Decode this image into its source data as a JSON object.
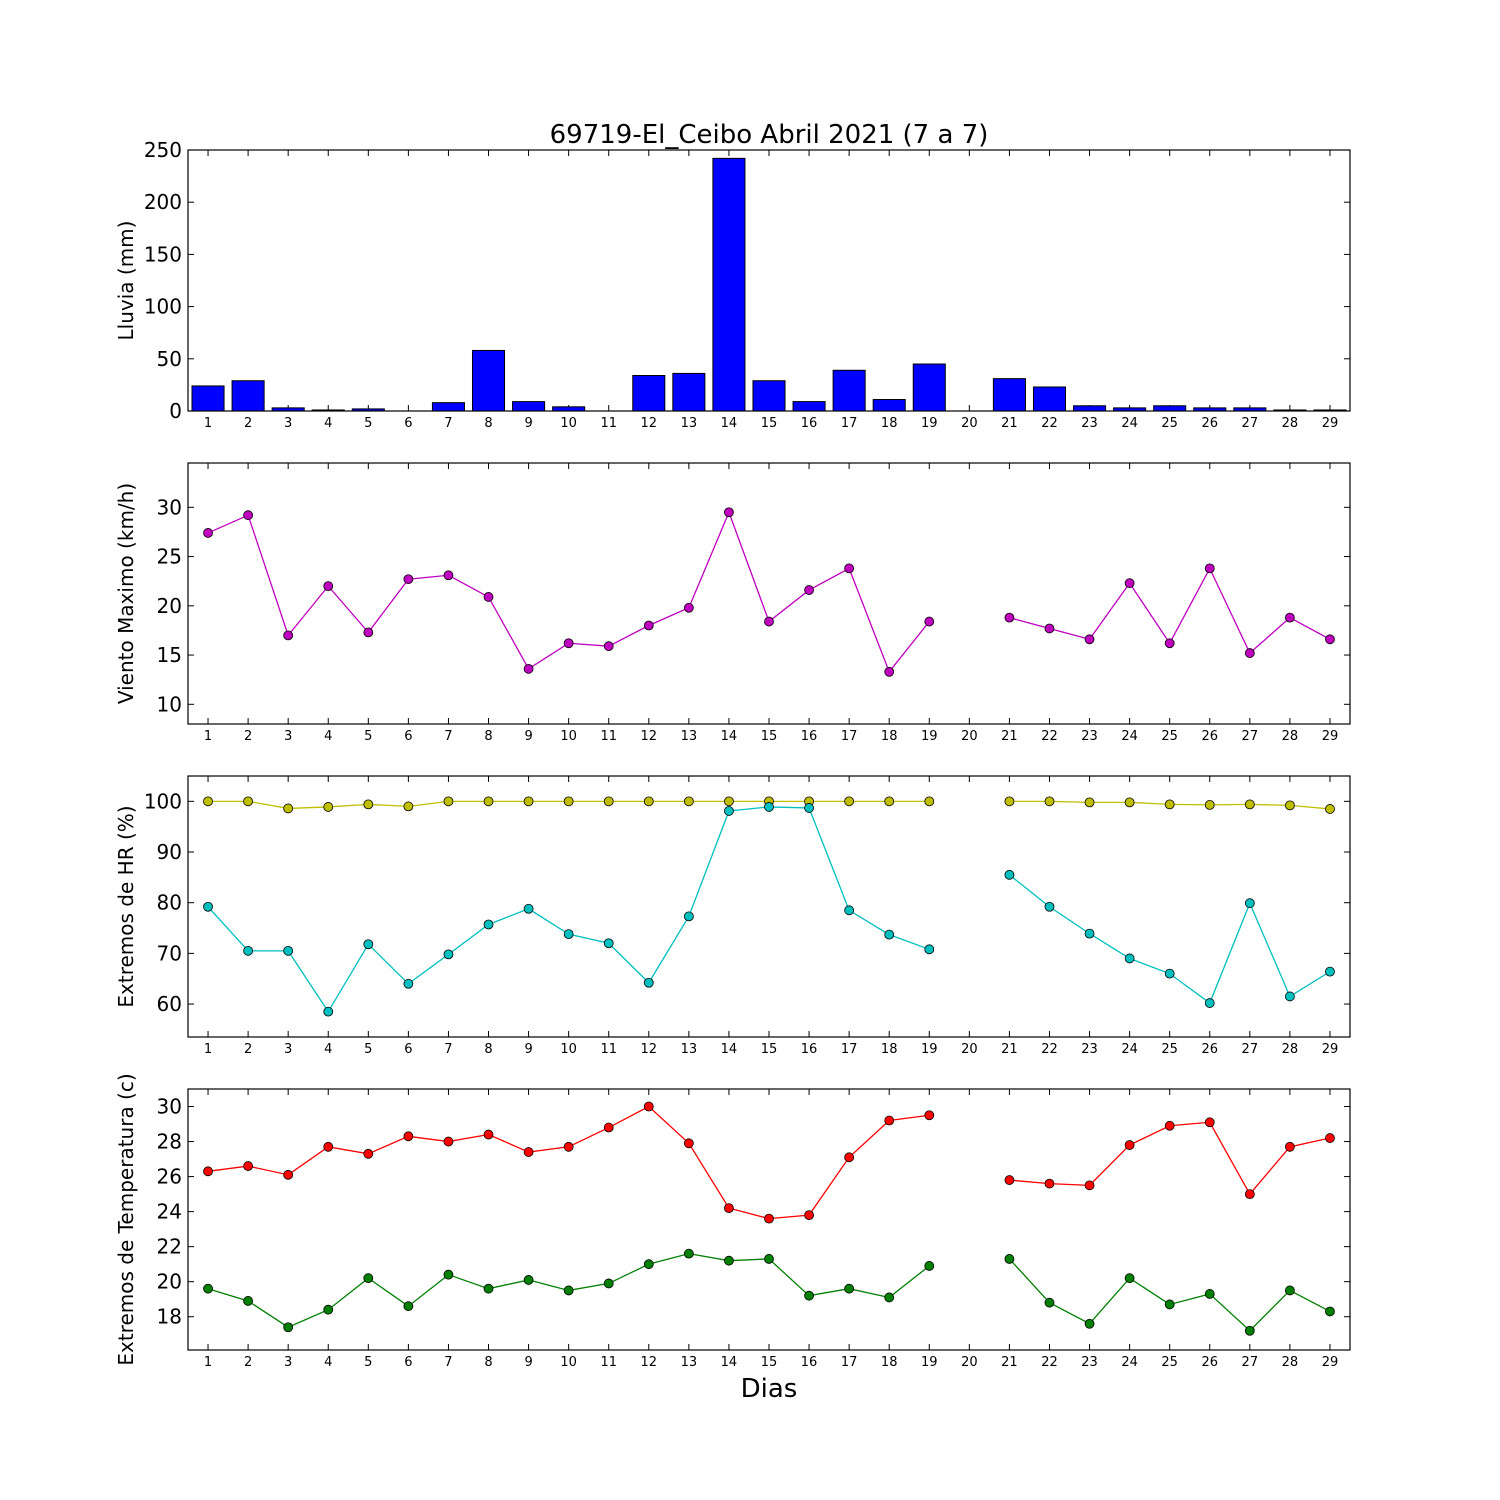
{
  "title": "69719-El_Ceibo Abril 2021  (7 a 7)",
  "xlabel": "Dias",
  "chart_data": [
    {
      "type": "bar",
      "ylabel": "Lluvia (mm)",
      "ylim": [
        0,
        250
      ],
      "yticks": [
        0,
        50,
        100,
        150,
        200,
        250
      ],
      "categories": [
        "1",
        "2",
        "3",
        "4",
        "5",
        "6",
        "7",
        "8",
        "9",
        "10",
        "11",
        "12",
        "13",
        "14",
        "15",
        "16",
        "17",
        "18",
        "19",
        "20",
        "21",
        "22",
        "23",
        "24",
        "25",
        "26",
        "27",
        "28",
        "29"
      ],
      "series": [
        {
          "color": "#0000ff",
          "values": [
            24,
            29,
            3,
            1,
            2,
            0,
            8,
            58,
            9,
            4,
            0,
            34,
            36,
            242,
            29,
            9,
            39,
            11,
            45,
            0,
            31,
            23,
            5,
            3,
            5,
            3,
            3,
            1,
            1
          ]
        }
      ]
    },
    {
      "type": "line",
      "ylabel": "Viento Maximo (km/h)",
      "ylim": [
        8,
        34.5
      ],
      "yticks": [
        10,
        15,
        20,
        25,
        30
      ],
      "x": [
        1,
        2,
        3,
        4,
        5,
        6,
        7,
        8,
        9,
        10,
        11,
        12,
        13,
        14,
        15,
        16,
        17,
        18,
        19,
        20,
        21,
        22,
        23,
        24,
        25,
        26,
        27,
        28,
        29
      ],
      "series": [
        {
          "color": "#bf00bf",
          "values": [
            27.4,
            29.2,
            17.0,
            22.0,
            17.3,
            22.7,
            23.1,
            20.9,
            13.6,
            16.2,
            15.9,
            18.0,
            19.8,
            29.5,
            18.4,
            21.6,
            23.8,
            13.3,
            18.4,
            null,
            18.8,
            17.7,
            16.6,
            22.3,
            16.2,
            23.8,
            15.2,
            18.8,
            16.6
          ]
        }
      ]
    },
    {
      "type": "line",
      "ylabel": "Extremos de HR (%)",
      "ylim": [
        53.5,
        105
      ],
      "yticks": [
        60,
        70,
        80,
        90,
        100
      ],
      "x": [
        1,
        2,
        3,
        4,
        5,
        6,
        7,
        8,
        9,
        10,
        11,
        12,
        13,
        14,
        15,
        16,
        17,
        18,
        19,
        20,
        21,
        22,
        23,
        24,
        25,
        26,
        27,
        28,
        29
      ],
      "series": [
        {
          "color": "#bfbf00",
          "values": [
            100,
            100,
            98.6,
            98.9,
            99.4,
            99.0,
            100,
            100,
            100,
            100,
            100,
            100,
            100,
            100,
            100,
            100,
            100,
            100,
            100,
            null,
            100,
            100,
            99.8,
            99.8,
            99.4,
            99.3,
            99.4,
            99.2,
            98.5
          ]
        },
        {
          "color": "#00bfbf",
          "values": [
            79.2,
            70.5,
            70.5,
            58.5,
            71.8,
            64.0,
            69.8,
            75.7,
            78.8,
            73.8,
            72.0,
            64.2,
            77.3,
            98.1,
            98.9,
            98.7,
            78.5,
            73.7,
            70.8,
            null,
            85.5,
            79.2,
            73.9,
            69.0,
            66.0,
            60.2,
            79.9,
            61.5,
            66.4
          ]
        }
      ]
    },
    {
      "type": "line",
      "ylabel": "Extremos de Temperatura (c)",
      "ylim": [
        16.1,
        31
      ],
      "yticks": [
        18,
        20,
        22,
        24,
        26,
        28,
        30
      ],
      "x": [
        1,
        2,
        3,
        4,
        5,
        6,
        7,
        8,
        9,
        10,
        11,
        12,
        13,
        14,
        15,
        16,
        17,
        18,
        19,
        20,
        21,
        22,
        23,
        24,
        25,
        26,
        27,
        28,
        29
      ],
      "series": [
        {
          "color": "#ff0000",
          "values": [
            26.3,
            26.6,
            26.1,
            27.7,
            27.3,
            28.3,
            28.0,
            28.4,
            27.4,
            27.7,
            28.8,
            30.0,
            27.9,
            24.2,
            23.6,
            23.8,
            27.1,
            29.2,
            29.5,
            null,
            25.8,
            25.6,
            25.5,
            27.8,
            28.9,
            29.1,
            25.0,
            27.7,
            28.2
          ]
        },
        {
          "color": "#008000",
          "values": [
            19.6,
            18.9,
            17.4,
            18.4,
            20.2,
            18.6,
            20.4,
            19.6,
            20.1,
            19.5,
            19.9,
            21.0,
            21.6,
            21.2,
            21.3,
            19.2,
            19.6,
            19.1,
            20.9,
            null,
            21.3,
            18.8,
            17.6,
            20.2,
            18.7,
            19.3,
            17.2,
            19.5,
            18.3
          ]
        }
      ]
    }
  ]
}
